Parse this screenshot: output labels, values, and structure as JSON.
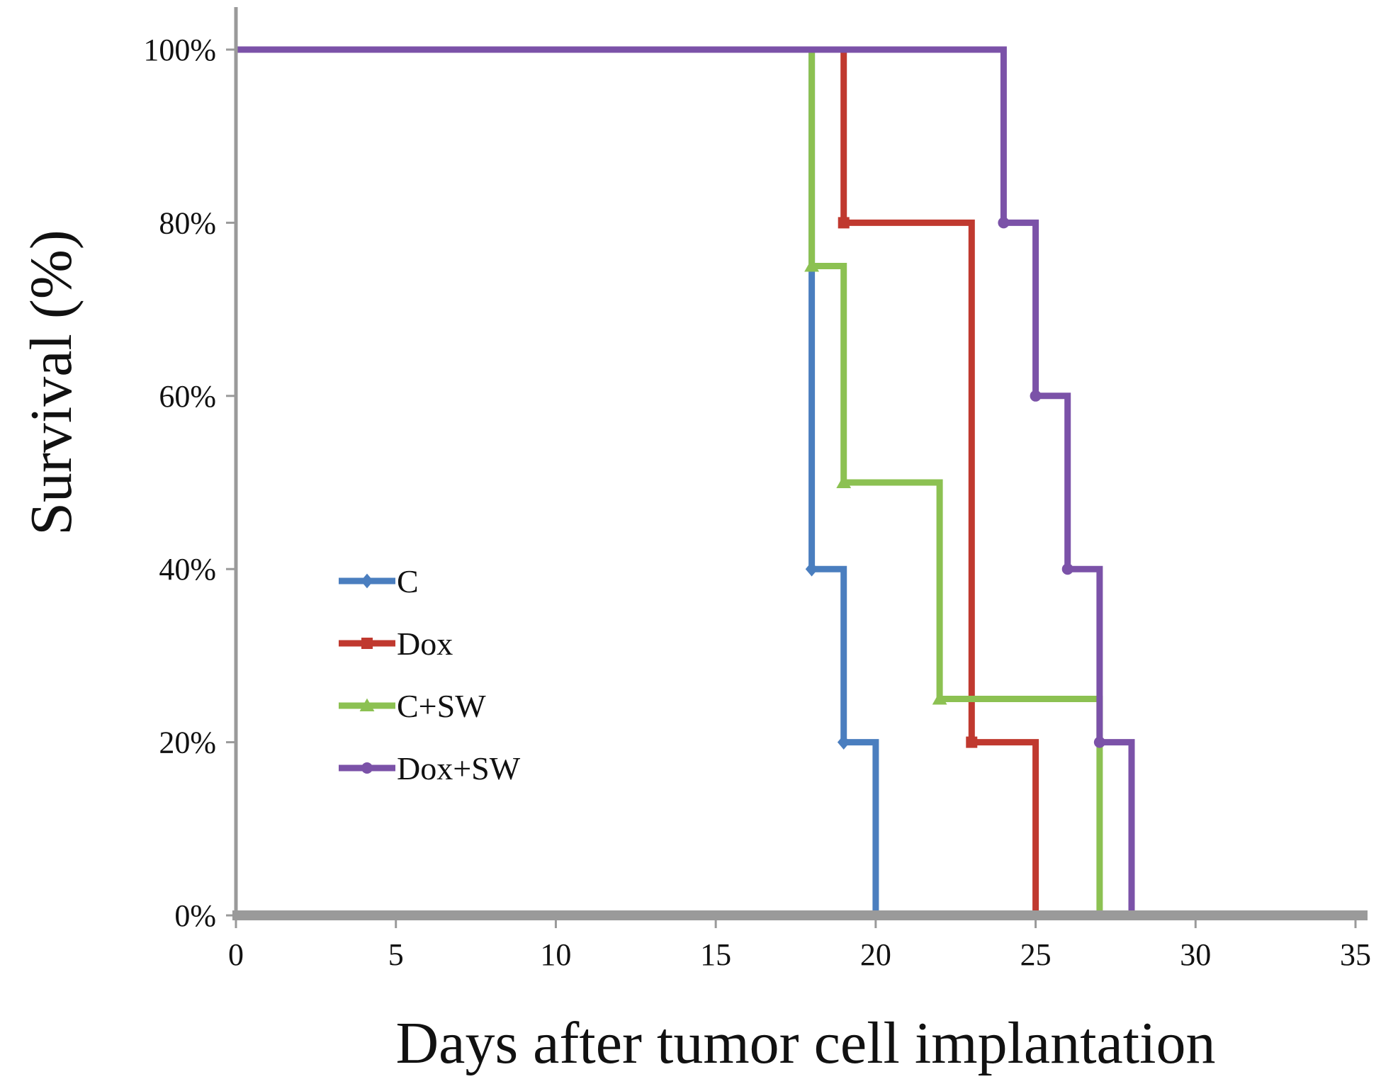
{
  "chart_data": {
    "type": "line",
    "subtype": "step",
    "title": "",
    "xlabel": "Days after tumor cell implantation",
    "ylabel": "Survival (%)",
    "xlim": [
      0,
      35
    ],
    "ylim": [
      0,
      100
    ],
    "x_ticks": [
      0,
      5,
      10,
      15,
      20,
      25,
      30,
      35
    ],
    "x_tick_labels": [
      "0",
      "5",
      "10",
      "15",
      "20",
      "25",
      "30",
      "35"
    ],
    "y_ticks": [
      0,
      20,
      40,
      60,
      80,
      100
    ],
    "y_tick_labels": [
      "0%",
      "20%",
      "40%",
      "60%",
      "80%",
      "100%"
    ],
    "grid": false,
    "legend_position": "center-left",
    "series": [
      {
        "name": "C",
        "color": "#4a7ebf",
        "marker": "diamond",
        "points": [
          [
            0,
            100
          ],
          [
            18,
            100
          ],
          [
            18,
            40
          ],
          [
            19,
            40
          ],
          [
            19,
            20
          ],
          [
            20,
            20
          ],
          [
            20,
            0
          ]
        ],
        "markers": [
          [
            18,
            40
          ],
          [
            19,
            20
          ]
        ]
      },
      {
        "name": "Dox",
        "color": "#c0392f",
        "marker": "square",
        "points": [
          [
            0,
            100
          ],
          [
            19,
            100
          ],
          [
            19,
            80
          ],
          [
            23,
            80
          ],
          [
            23,
            20
          ],
          [
            25,
            20
          ],
          [
            25,
            0
          ]
        ],
        "markers": [
          [
            19,
            80
          ],
          [
            23,
            20
          ]
        ]
      },
      {
        "name": "C+SW",
        "color": "#8cc152",
        "marker": "triangle",
        "points": [
          [
            0,
            100
          ],
          [
            18,
            100
          ],
          [
            18,
            75
          ],
          [
            19,
            75
          ],
          [
            19,
            50
          ],
          [
            22,
            50
          ],
          [
            22,
            25
          ],
          [
            27,
            25
          ],
          [
            27,
            0
          ]
        ],
        "markers": [
          [
            18,
            75
          ],
          [
            19,
            50
          ],
          [
            22,
            25
          ]
        ]
      },
      {
        "name": "Dox+SW",
        "color": "#7b52a8",
        "marker": "circle",
        "points": [
          [
            0,
            100
          ],
          [
            24,
            100
          ],
          [
            24,
            80
          ],
          [
            25,
            80
          ],
          [
            25,
            60
          ],
          [
            26,
            60
          ],
          [
            26,
            40
          ],
          [
            27,
            40
          ],
          [
            27,
            20
          ],
          [
            28,
            20
          ],
          [
            28,
            0
          ]
        ],
        "markers": [
          [
            24,
            80
          ],
          [
            25,
            60
          ],
          [
            26,
            40
          ],
          [
            27,
            20
          ]
        ]
      }
    ]
  }
}
